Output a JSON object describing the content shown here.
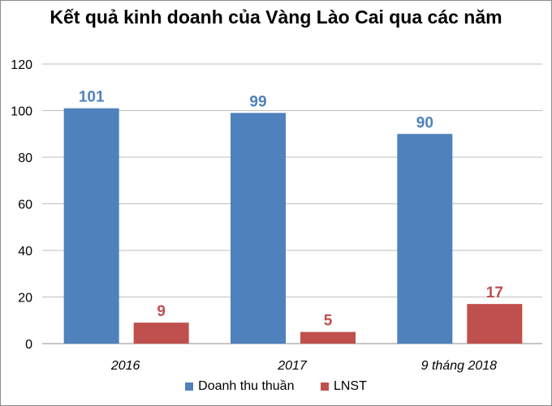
{
  "chart_data": {
    "type": "bar",
    "title": "Kết quả kinh doanh của Vàng Lào Cai qua các năm",
    "categories": [
      "2016",
      "2017",
      "9 tháng 2018"
    ],
    "series": [
      {
        "name": "Doanh thu thuần",
        "values": [
          101,
          99,
          90
        ],
        "color": "#4f81bd",
        "label_color": "#4f81bd"
      },
      {
        "name": "LNST",
        "values": [
          9,
          5,
          17
        ],
        "color": "#c0504d",
        "label_color": "#c0504d"
      }
    ],
    "ylim": [
      0,
      120
    ],
    "yticks": [
      0,
      20,
      40,
      60,
      80,
      100,
      120
    ],
    "grid": true,
    "legend": "bottom"
  }
}
